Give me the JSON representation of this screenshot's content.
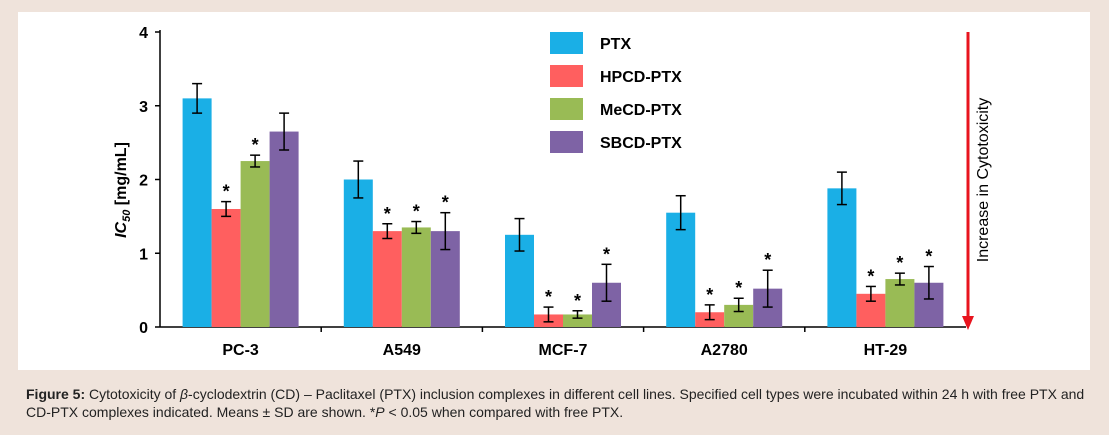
{
  "chart_data": {
    "type": "bar",
    "ylabel_main": "IC",
    "ylabel_sub": "50",
    "ylabel_unit": " [mg/mL]",
    "ylim": [
      0,
      4
    ],
    "yticks": [
      "0",
      "1",
      "2",
      "3",
      "4"
    ],
    "categories": [
      "PC-3",
      "A549",
      "MCF-7",
      "A2780",
      "HT-29"
    ],
    "series": [
      {
        "name": "PTX",
        "color": "#1aafe6",
        "values": [
          3.1,
          2.0,
          1.25,
          1.55,
          1.88
        ],
        "errors": [
          0.2,
          0.25,
          0.22,
          0.23,
          0.22
        ],
        "sig": [
          "",
          "",
          "",
          "",
          ""
        ]
      },
      {
        "name": "HPCD-PTX",
        "color": "#ff5f5f",
        "values": [
          1.6,
          1.3,
          0.17,
          0.2,
          0.45
        ],
        "errors": [
          0.1,
          0.1,
          0.1,
          0.1,
          0.1
        ],
        "sig": [
          "*",
          "*",
          "*",
          "*",
          "*"
        ]
      },
      {
        "name": "MeCD-PTX",
        "color": "#99bb55",
        "values": [
          2.25,
          1.35,
          0.17,
          0.3,
          0.65
        ],
        "errors": [
          0.08,
          0.08,
          0.05,
          0.09,
          0.08
        ],
        "sig": [
          "*",
          "*",
          "*",
          "*",
          "*"
        ]
      },
      {
        "name": "SBCD-PTX",
        "color": "#7e63a5",
        "values": [
          2.65,
          1.3,
          0.6,
          0.52,
          0.6
        ],
        "errors": [
          0.25,
          0.25,
          0.25,
          0.25,
          0.22
        ],
        "sig": [
          "",
          "*",
          "*",
          "*",
          "*"
        ]
      }
    ],
    "legend_position": "top-center",
    "annotation": "Increase in Cytotoxicity",
    "arrow_color": "#e8141e"
  },
  "caption": {
    "label": "Figure 5:",
    "text_1": " Cytotoxicity of ",
    "beta": "β",
    "text_2": "-cyclodextrin (CD) – Paclitaxel (PTX) inclusion complexes in different cell lines. Specified cell types were incubated within 24 h with free PTX and CD-PTX complexes indicated. Means ± SD are shown. *",
    "p": "P",
    "text_3": " < 0.05 when compared with free PTX."
  }
}
